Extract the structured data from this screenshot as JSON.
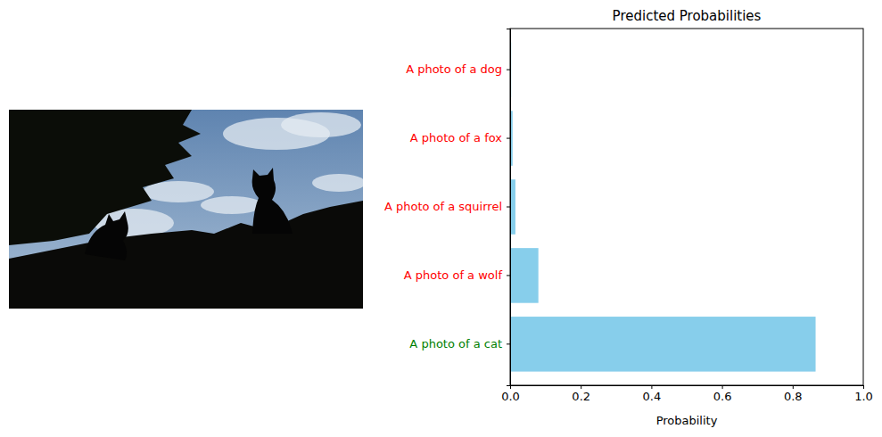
{
  "chart_data": {
    "type": "bar",
    "title": "Predicted Probabilities",
    "x_label": "Probability",
    "orientation": "horizontal",
    "categories": [
      "A photo of a dog",
      "A photo of a fox",
      "A photo of a squirrel",
      "A photo of a wolf",
      "A photo of a cat"
    ],
    "values": [
      0.003,
      0.007,
      0.015,
      0.08,
      0.865
    ],
    "color": "#87ceeb",
    "xlim": [
      0,
      1
    ],
    "xticks": [
      {
        "value": 0,
        "label": "0.0"
      },
      0.2,
      0.4,
      0.6,
      0.8,
      {
        "value": 1,
        "label": "1.0"
      }
    ],
    "grid": false
  }
}
